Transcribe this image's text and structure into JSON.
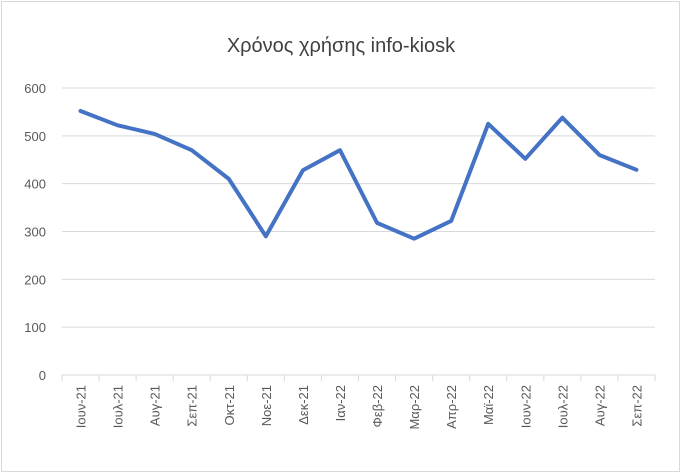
{
  "chart_data": {
    "type": "line",
    "title": "Χρόνος χρήσης info-kiosk",
    "categories": [
      "Ιουν-21",
      "Ιουλ-21",
      "Αυγ-21",
      "Σεπ-21",
      "Οκτ-21",
      "Νοε-21",
      "Δεκ-21",
      "Ιαν-22",
      "Φεβ-22",
      "Μαρ-22",
      "Απρ-22",
      "Μαϊ-22",
      "Ιουν-22",
      "Ιουλ-22",
      "Αυγ-22",
      "Σεπ-22"
    ],
    "values": [
      552,
      522,
      504,
      470,
      410,
      290,
      428,
      470,
      318,
      285,
      322,
      525,
      452,
      538,
      460,
      429
    ],
    "color": "#4472c4",
    "ylim": [
      0,
      600
    ],
    "yticks": [
      0,
      100,
      200,
      300,
      400,
      500,
      600
    ],
    "grid": true
  }
}
